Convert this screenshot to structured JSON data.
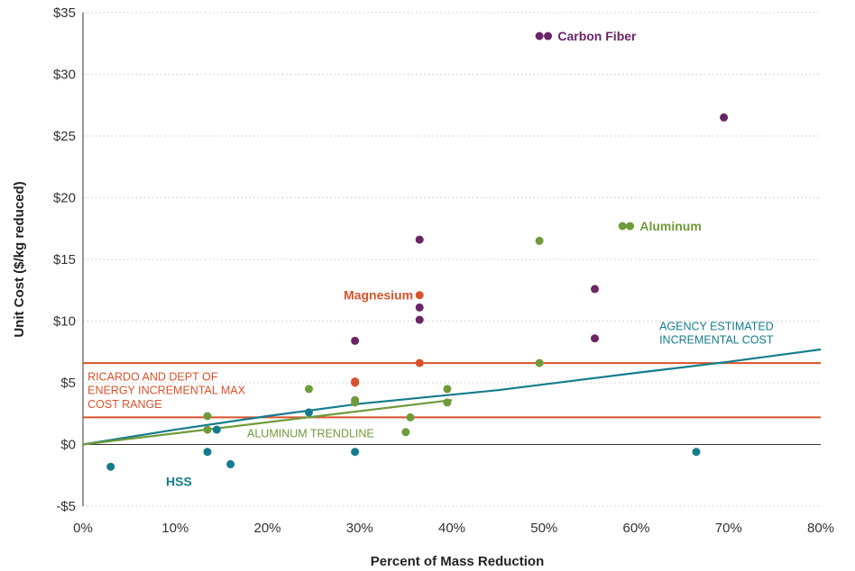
{
  "chart_data": {
    "type": "scatter",
    "xlabel": "Percent of  Mass Reduction",
    "ylabel": "Unit Cost ($/kg reduced)",
    "xlim": [
      0,
      80
    ],
    "ylim": [
      -5,
      35
    ],
    "x_ticks": [
      0,
      10,
      20,
      30,
      40,
      50,
      60,
      70,
      80
    ],
    "x_tick_labels": [
      "0%",
      "10%",
      "20%",
      "30%",
      "40%",
      "50%",
      "60%",
      "70%",
      "80%"
    ],
    "y_ticks": [
      -5,
      0,
      5,
      10,
      15,
      20,
      25,
      30,
      35
    ],
    "y_tick_labels": [
      "-$5",
      "$0",
      "$5",
      "$10",
      "$15",
      "$20",
      "$25",
      "$30",
      "$35"
    ],
    "grid": "horizontal-dotted",
    "colors": {
      "carbon_fiber": "#6b2466",
      "aluminum": "#6f9a3a",
      "magnesium": "#d9522b",
      "hss": "#137c8c",
      "ricardo_lines": "#d9522b",
      "agency_line": "#137c8c",
      "aluminum_trendline": "#6f9a3a"
    },
    "series": [
      {
        "name": "Carbon Fiber",
        "color": "#6b2466",
        "points": [
          [
            49.5,
            33.1
          ],
          [
            69.5,
            26.5
          ],
          [
            36.5,
            16.6
          ],
          [
            55.5,
            12.6
          ],
          [
            36.5,
            11.1
          ],
          [
            36.5,
            10.1
          ],
          [
            55.5,
            8.6
          ],
          [
            29.5,
            8.4
          ]
        ]
      },
      {
        "name": "Aluminum",
        "color": "#6f9a3a",
        "points": [
          [
            58.5,
            17.7
          ],
          [
            49.5,
            16.5
          ],
          [
            49.5,
            6.6
          ],
          [
            24.5,
            4.5
          ],
          [
            39.5,
            4.5
          ],
          [
            29.5,
            3.6
          ],
          [
            29.5,
            3.4
          ],
          [
            39.5,
            3.4
          ],
          [
            13.5,
            2.3
          ],
          [
            35.5,
            2.2
          ],
          [
            13.5,
            1.2
          ],
          [
            35.0,
            1.0
          ]
        ]
      },
      {
        "name": "Magnesium",
        "color": "#d9522b",
        "points": [
          [
            36.5,
            12.1
          ],
          [
            36.5,
            6.6
          ],
          [
            29.5,
            5.1
          ],
          [
            29.5,
            5.0
          ]
        ]
      },
      {
        "name": "HSS",
        "color": "#137c8c",
        "points": [
          [
            24.5,
            2.6
          ],
          [
            14.5,
            1.2
          ],
          [
            3.0,
            -1.8
          ],
          [
            13.5,
            -0.6
          ],
          [
            16.0,
            -1.6
          ],
          [
            29.5,
            -0.6
          ],
          [
            66.5,
            -0.6
          ]
        ]
      }
    ],
    "lines": [
      {
        "name": "RICARDO AND DEPT OF ENERGY INCREMENTAL MAX COST RANGE (upper)",
        "color": "#d9522b",
        "y": 6.6
      },
      {
        "name": "RICARDO AND DEPT OF ENERGY INCREMENTAL MAX COST RANGE (lower)",
        "color": "#d9522b",
        "y": 2.2
      },
      {
        "name": "AGENCY ESTIMATED INCREMENTAL COST",
        "color": "#137c8c",
        "points": [
          [
            0,
            0
          ],
          [
            10,
            1.2
          ],
          [
            20,
            2.3
          ],
          [
            30,
            3.3
          ],
          [
            45,
            4.4
          ],
          [
            60,
            5.8
          ],
          [
            70,
            6.7
          ],
          [
            80,
            7.7
          ]
        ]
      },
      {
        "name": "ALUMINUM TRENDLINE",
        "color": "#6f9a3a",
        "points": [
          [
            0,
            0
          ],
          [
            40,
            3.6
          ]
        ]
      }
    ],
    "annotations": [
      {
        "text": "Carbon Fiber",
        "x": 50.5,
        "y": 33.1,
        "color": "#6b2466",
        "style": "bold",
        "marker": true
      },
      {
        "text": "Aluminum",
        "x": 59.4,
        "y": 17.7,
        "color": "#6f9a3a",
        "style": "bold",
        "marker": true
      },
      {
        "text": "Magnesium",
        "x": 35.8,
        "y": 12.1,
        "color": "#d9522b",
        "style": "bold",
        "anchor": "end"
      },
      {
        "text": "HSS",
        "x": 9.0,
        "y": -3.0,
        "color": "#137c8c",
        "style": "bold"
      },
      {
        "text": "AGENCY ESTIMATED",
        "x": 62.5,
        "y": 9.6,
        "color": "#137c8c",
        "style": "regular"
      },
      {
        "text": "INCREMENTAL COST",
        "x": 62.5,
        "y": 8.5,
        "color": "#137c8c",
        "style": "regular"
      },
      {
        "text": "RICARDO AND DEPT OF",
        "x": 0.5,
        "y": 5.5,
        "color": "#d9522b",
        "style": "regular"
      },
      {
        "text": "ENERGY INCREMENTAL MAX",
        "x": 0.5,
        "y": 4.4,
        "color": "#d9522b",
        "style": "regular"
      },
      {
        "text": "COST RANGE",
        "x": 0.5,
        "y": 3.3,
        "color": "#d9522b",
        "style": "regular"
      },
      {
        "text": "ALUMINUM TRENDLINE",
        "x": 17.8,
        "y": 0.9,
        "color": "#6f9a3a",
        "style": "regular"
      }
    ]
  }
}
